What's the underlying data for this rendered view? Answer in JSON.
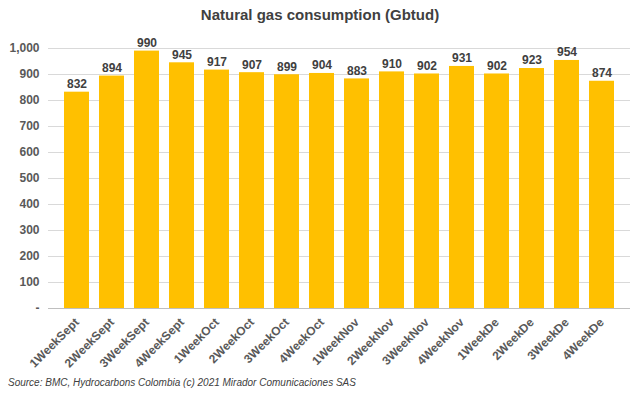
{
  "chart_data": {
    "type": "bar",
    "title": "Natural gas consumption (Gbtud)",
    "caption": "Source:  BMC, Hydrocarbons Colombia (c) 2021 Mirador Comunicaciones SAS",
    "categories": [
      "1WeekSept",
      "2WeekSept",
      "3WeekSept",
      "4WeekSept",
      "1WeekOct",
      "2WeekOct",
      "3WeekOct",
      "4WeekOct",
      "1WeekNov",
      "2WeekNov",
      "3WeekNov",
      "4WeekNov",
      "1WeekDe",
      "2WeekDe",
      "3WeekDe",
      "4WeekDe"
    ],
    "values": [
      832,
      894,
      990,
      945,
      917,
      907,
      899,
      904,
      883,
      910,
      902,
      931,
      902,
      923,
      954,
      874
    ],
    "color": "#FFC000",
    "ylim": [
      0,
      1000
    ],
    "yticks": [
      {
        "value": 0,
        "label": "-"
      },
      100,
      200,
      300,
      400,
      500,
      600,
      700,
      800,
      900,
      {
        "value": 1000,
        "label": "1,000"
      }
    ],
    "grid": true,
    "data_labels": true
  }
}
